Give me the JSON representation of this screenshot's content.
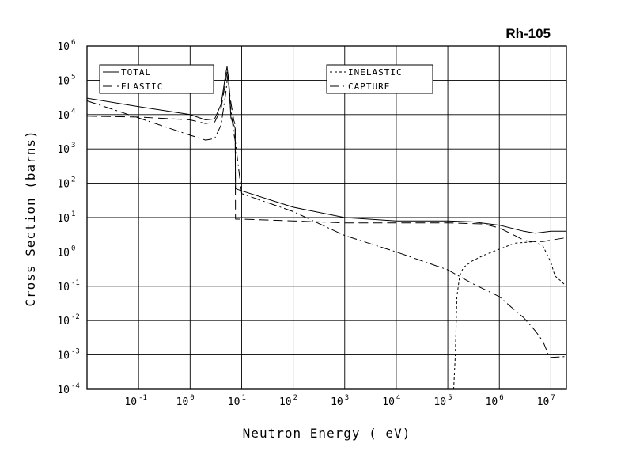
{
  "chart_data": {
    "type": "line",
    "title": "Rh-105",
    "xlabel": "Neutron Energy ( eV)",
    "ylabel": "Cross Section (barns)",
    "x_scale": "log",
    "y_scale": "log",
    "xlim": [
      0.01,
      20000000
    ],
    "ylim": [
      0.0001,
      1000000
    ],
    "grid": true,
    "legend_position": "top",
    "x_ticks": [
      {
        "base": "10",
        "exp": "-1",
        "value": 0.1
      },
      {
        "base": "10",
        "exp": "0",
        "value": 1
      },
      {
        "base": "10",
        "exp": "1",
        "value": 10
      },
      {
        "base": "10",
        "exp": "2",
        "value": 100
      },
      {
        "base": "10",
        "exp": "3",
        "value": 1000
      },
      {
        "base": "10",
        "exp": "4",
        "value": 10000
      },
      {
        "base": "10",
        "exp": "5",
        "value": 100000
      },
      {
        "base": "10",
        "exp": "6",
        "value": 1000000
      },
      {
        "base": "10",
        "exp": "7",
        "value": 10000000
      }
    ],
    "y_ticks": [
      {
        "base": "10",
        "exp": "6",
        "value": 1000000
      },
      {
        "base": "10",
        "exp": "5",
        "value": 100000
      },
      {
        "base": "10",
        "exp": "4",
        "value": 10000
      },
      {
        "base": "10",
        "exp": "3",
        "value": 1000
      },
      {
        "base": "10",
        "exp": "2",
        "value": 100
      },
      {
        "base": "10",
        "exp": "1",
        "value": 10
      },
      {
        "base": "10",
        "exp": "0",
        "value": 1
      },
      {
        "base": "10",
        "exp": "-1",
        "value": 0.1
      },
      {
        "base": "10",
        "exp": "-2",
        "value": 0.01
      },
      {
        "base": "10",
        "exp": "-3",
        "value": 0.001
      },
      {
        "base": "10",
        "exp": "-4",
        "value": 0.0001
      }
    ],
    "series": [
      {
        "name": "TOTAL",
        "dash": "solid",
        "color": "#000000",
        "x": [
          0.01,
          0.1,
          1,
          2,
          3,
          4,
          4.7,
          5.2,
          5.6,
          6.2,
          7,
          7.5,
          7.6,
          10,
          100,
          1000,
          10000,
          100000,
          300000,
          1000000,
          3000000,
          5000000,
          10000000,
          20000000
        ],
        "y": [
          30000,
          17000,
          10000,
          7000,
          7500,
          20000,
          100000,
          250000,
          100000,
          8000,
          5000,
          4000,
          70,
          60,
          20,
          10,
          8,
          8,
          7.5,
          6,
          4,
          3.5,
          4,
          4
        ]
      },
      {
        "name": "ELASTIC",
        "dash": "long",
        "color": "#000000",
        "x": [
          0.01,
          0.1,
          1,
          2,
          3,
          4,
          4.8,
          5.3,
          6,
          7,
          7.5,
          7.6,
          10,
          100,
          1000,
          100000,
          500000,
          1000000,
          2000000,
          3000000,
          4000000,
          5000000,
          7000000,
          10000000,
          20000000
        ],
        "y": [
          9000,
          8500,
          7000,
          5500,
          6000,
          15000,
          80000,
          200000,
          30000,
          7000,
          5000,
          9,
          9,
          8,
          7,
          7,
          6.5,
          5,
          3,
          2.2,
          2,
          2,
          2,
          2.2,
          2.6
        ]
      },
      {
        "name": "INELASTIC",
        "dash": "short",
        "color": "#000000",
        "x": [
          130000,
          140000,
          150000,
          170000,
          200000,
          300000,
          500000,
          1000000,
          2000000,
          5000000,
          7000000,
          10000000,
          12000000,
          15000000,
          20000000
        ],
        "y": [
          0.0001,
          0.001,
          0.05,
          0.2,
          0.35,
          0.55,
          0.8,
          1.2,
          1.8,
          2,
          1.5,
          0.5,
          0.2,
          0.15,
          0.1
        ]
      },
      {
        "name": "CAPTURE",
        "dash": "dashdot",
        "color": "#000000",
        "x": [
          0.01,
          0.1,
          1,
          2,
          3,
          4,
          5,
          5.4,
          6,
          7,
          7.6,
          10,
          100,
          1000,
          10000,
          100000,
          300000,
          1000000,
          2000000,
          3000000,
          5000000,
          7000000,
          9000000,
          10000000,
          20000000
        ],
        "y": [
          25000,
          8000,
          2500,
          1800,
          2000,
          5000,
          50000,
          150000,
          20000,
          3000,
          1500,
          50,
          15,
          3,
          1,
          0.3,
          0.12,
          0.05,
          0.02,
          0.012,
          0.005,
          0.0025,
          0.001,
          0.00085,
          0.0009
        ]
      }
    ]
  }
}
